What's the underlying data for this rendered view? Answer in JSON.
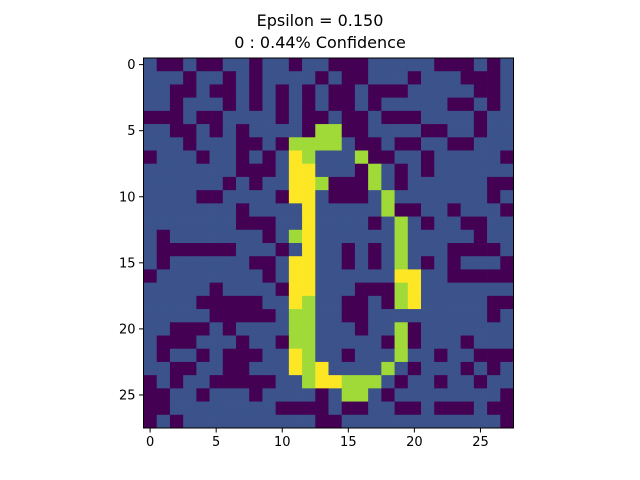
{
  "chart_data": {
    "type": "heatmap",
    "title": "Epsilon = 0.150",
    "subtitle": "0 : 0.44% Confidence",
    "xlabel": "",
    "ylabel": "",
    "xlim": [
      -0.5,
      27.5
    ],
    "ylim": [
      27.5,
      -0.5
    ],
    "x_ticks": [
      0,
      5,
      10,
      15,
      20,
      25
    ],
    "y_ticks": [
      0,
      5,
      10,
      15,
      20,
      25
    ],
    "grid": false,
    "colormap": "viridis",
    "colors": {
      "low": "#440154",
      "mid": "#3b528b",
      "mid_high": "#a0da39",
      "high": "#fde725"
    },
    "levels": [
      0.0,
      0.3,
      0.85,
      1.0
    ],
    "values": [
      [
        1,
        0,
        0,
        1,
        0,
        0,
        1,
        1,
        0,
        1,
        1,
        0,
        1,
        1,
        0,
        0,
        0,
        1,
        1,
        1,
        1,
        1,
        0,
        0,
        0,
        1,
        0,
        1
      ],
      [
        1,
        1,
        1,
        0,
        1,
        1,
        0,
        1,
        0,
        1,
        1,
        1,
        1,
        0,
        1,
        0,
        0,
        1,
        1,
        1,
        0,
        1,
        1,
        1,
        0,
        0,
        0,
        1
      ],
      [
        1,
        1,
        0,
        0,
        1,
        0,
        0,
        1,
        0,
        1,
        0,
        1,
        0,
        1,
        0,
        0,
        1,
        0,
        0,
        0,
        1,
        1,
        1,
        1,
        1,
        0,
        0,
        1
      ],
      [
        1,
        1,
        0,
        1,
        1,
        1,
        0,
        1,
        0,
        1,
        0,
        1,
        0,
        1,
        0,
        0,
        1,
        0,
        1,
        1,
        1,
        1,
        1,
        0,
        0,
        1,
        0,
        1
      ],
      [
        0,
        0,
        0,
        1,
        0,
        0,
        1,
        1,
        1,
        1,
        0,
        1,
        0,
        0,
        1,
        0,
        0,
        1,
        0,
        0,
        0,
        1,
        1,
        1,
        1,
        0,
        1,
        1
      ],
      [
        1,
        1,
        0,
        0,
        1,
        0,
        1,
        0,
        1,
        1,
        1,
        1,
        0,
        2,
        2,
        0,
        0,
        1,
        1,
        1,
        1,
        0,
        0,
        1,
        1,
        0,
        1,
        1
      ],
      [
        1,
        1,
        1,
        0,
        1,
        1,
        1,
        0,
        0,
        1,
        0,
        2,
        2,
        2,
        2,
        1,
        0,
        0,
        1,
        0,
        0,
        1,
        1,
        0,
        0,
        1,
        1,
        1
      ],
      [
        0,
        1,
        1,
        1,
        0,
        1,
        1,
        0,
        1,
        0,
        1,
        3,
        2,
        1,
        1,
        1,
        2,
        0,
        0,
        1,
        1,
        0,
        1,
        1,
        1,
        1,
        1,
        0
      ],
      [
        1,
        1,
        1,
        1,
        1,
        1,
        1,
        0,
        0,
        0,
        1,
        3,
        3,
        1,
        1,
        1,
        0,
        2,
        1,
        0,
        1,
        0,
        1,
        1,
        1,
        1,
        1,
        1
      ],
      [
        1,
        1,
        1,
        1,
        1,
        1,
        0,
        1,
        0,
        1,
        1,
        3,
        3,
        2,
        0,
        0,
        0,
        2,
        1,
        0,
        1,
        1,
        1,
        1,
        1,
        1,
        0,
        0
      ],
      [
        1,
        1,
        1,
        1,
        0,
        0,
        1,
        1,
        1,
        1,
        0,
        3,
        3,
        1,
        0,
        0,
        0,
        1,
        2,
        1,
        1,
        1,
        1,
        1,
        1,
        1,
        0,
        1
      ],
      [
        1,
        1,
        1,
        1,
        1,
        1,
        1,
        0,
        1,
        1,
        1,
        1,
        3,
        1,
        1,
        1,
        1,
        1,
        2,
        0,
        0,
        1,
        1,
        0,
        1,
        1,
        1,
        0
      ],
      [
        1,
        1,
        1,
        1,
        1,
        1,
        1,
        0,
        0,
        0,
        1,
        1,
        3,
        1,
        1,
        1,
        1,
        0,
        1,
        2,
        1,
        0,
        1,
        1,
        0,
        0,
        1,
        1
      ],
      [
        1,
        0,
        1,
        1,
        1,
        1,
        1,
        1,
        1,
        0,
        1,
        2,
        3,
        1,
        1,
        1,
        1,
        1,
        1,
        2,
        1,
        1,
        1,
        1,
        1,
        0,
        1,
        1
      ],
      [
        1,
        0,
        0,
        0,
        0,
        0,
        0,
        1,
        1,
        1,
        0,
        1,
        3,
        1,
        1,
        0,
        1,
        0,
        1,
        2,
        1,
        1,
        1,
        0,
        0,
        0,
        0,
        1
      ],
      [
        1,
        0,
        1,
        1,
        1,
        1,
        1,
        1,
        0,
        0,
        1,
        3,
        3,
        1,
        1,
        0,
        1,
        0,
        1,
        2,
        1,
        0,
        1,
        0,
        1,
        1,
        1,
        0
      ],
      [
        0,
        1,
        1,
        1,
        1,
        1,
        1,
        1,
        1,
        0,
        1,
        3,
        3,
        1,
        1,
        1,
        1,
        1,
        1,
        3,
        3,
        1,
        1,
        0,
        0,
        0,
        0,
        0
      ],
      [
        1,
        1,
        1,
        1,
        1,
        0,
        1,
        1,
        1,
        1,
        0,
        3,
        3,
        1,
        1,
        1,
        0,
        0,
        0,
        2,
        3,
        1,
        1,
        1,
        1,
        1,
        1,
        1
      ],
      [
        1,
        1,
        1,
        1,
        0,
        0,
        0,
        0,
        0,
        1,
        1,
        3,
        2,
        1,
        1,
        0,
        0,
        1,
        0,
        2,
        3,
        1,
        1,
        1,
        1,
        1,
        0,
        0
      ],
      [
        1,
        1,
        1,
        1,
        1,
        0,
        0,
        0,
        0,
        0,
        1,
        2,
        2,
        1,
        1,
        0,
        0,
        1,
        1,
        1,
        1,
        1,
        1,
        1,
        1,
        1,
        0,
        1
      ],
      [
        1,
        1,
        0,
        0,
        0,
        1,
        0,
        1,
        1,
        1,
        1,
        2,
        2,
        1,
        1,
        1,
        0,
        1,
        1,
        2,
        0,
        1,
        1,
        1,
        1,
        1,
        1,
        1
      ],
      [
        1,
        0,
        0,
        0,
        1,
        1,
        1,
        0,
        1,
        1,
        0,
        2,
        2,
        1,
        1,
        1,
        1,
        1,
        0,
        2,
        0,
        1,
        1,
        1,
        0,
        1,
        1,
        1
      ],
      [
        1,
        0,
        1,
        1,
        0,
        1,
        0,
        0,
        0,
        1,
        1,
        3,
        2,
        1,
        1,
        0,
        1,
        1,
        1,
        2,
        1,
        1,
        0,
        1,
        1,
        0,
        0,
        0
      ],
      [
        1,
        1,
        0,
        0,
        1,
        1,
        0,
        0,
        1,
        1,
        1,
        3,
        2,
        3,
        1,
        1,
        1,
        1,
        2,
        1,
        0,
        1,
        1,
        1,
        0,
        1,
        0,
        1
      ],
      [
        0,
        1,
        0,
        1,
        1,
        0,
        0,
        0,
        0,
        0,
        1,
        1,
        2,
        3,
        3,
        2,
        2,
        2,
        1,
        0,
        1,
        1,
        0,
        1,
        1,
        0,
        1,
        1
      ],
      [
        0,
        0,
        1,
        1,
        0,
        1,
        1,
        1,
        0,
        1,
        1,
        1,
        1,
        0,
        1,
        2,
        2,
        1,
        0,
        1,
        1,
        1,
        1,
        1,
        1,
        1,
        1,
        0
      ],
      [
        0,
        0,
        1,
        1,
        1,
        1,
        1,
        1,
        1,
        1,
        0,
        0,
        0,
        0,
        1,
        0,
        0,
        1,
        1,
        0,
        0,
        1,
        0,
        0,
        0,
        1,
        0,
        0
      ],
      [
        0,
        1,
        0,
        1,
        1,
        1,
        1,
        1,
        1,
        1,
        1,
        1,
        1,
        0,
        0,
        1,
        1,
        1,
        1,
        1,
        1,
        1,
        1,
        1,
        1,
        1,
        1,
        0
      ]
    ]
  }
}
